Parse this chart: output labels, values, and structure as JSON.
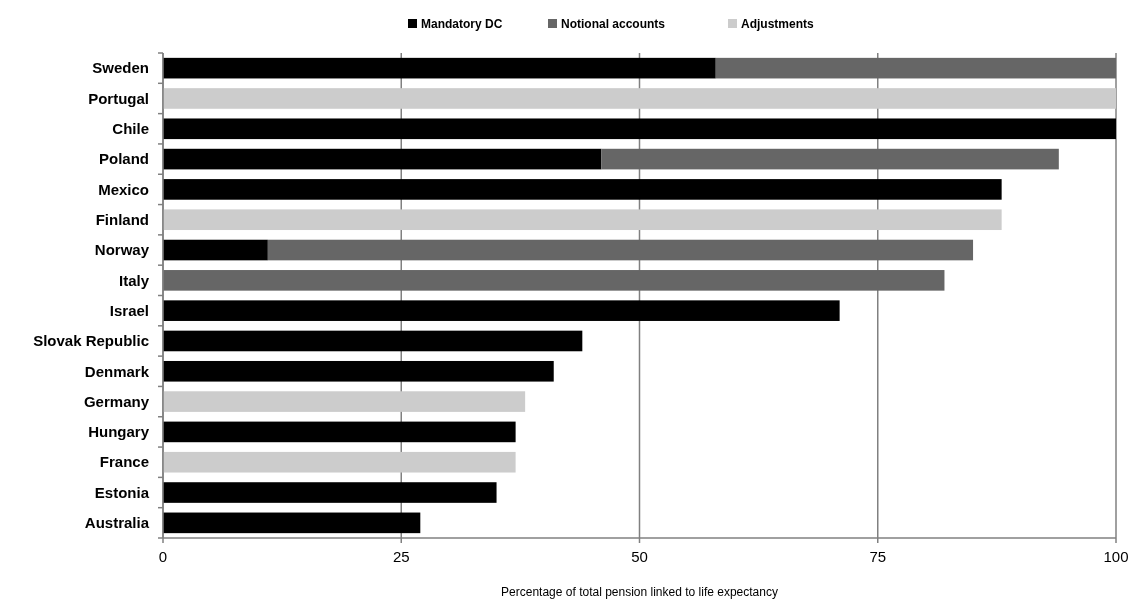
{
  "chart_data": {
    "type": "bar",
    "orientation": "horizontal",
    "stacked": true,
    "xlabel": "Percentage of total pension linked to life expectancy",
    "categories": [
      "Sweden",
      "Portugal",
      "Chile",
      "Poland",
      "Mexico",
      "Finland",
      "Norway",
      "Italy",
      "Israel",
      "Slovak Republic",
      "Denmark",
      "Germany",
      "Hungary",
      "France",
      "Estonia",
      "Australia"
    ],
    "series": [
      {
        "name": "Mandatory DC",
        "color": "#000000",
        "values": [
          58,
          null,
          100,
          46,
          88,
          null,
          11,
          null,
          71,
          44,
          41,
          null,
          37,
          null,
          35,
          27
        ]
      },
      {
        "name": "Notional accounts",
        "color": "#666666",
        "values": [
          42,
          null,
          null,
          48,
          null,
          null,
          74,
          82,
          null,
          null,
          null,
          null,
          null,
          null,
          null,
          null
        ]
      },
      {
        "name": "Adjustments",
        "color": "#cccccc",
        "values": [
          null,
          100,
          null,
          null,
          null,
          88,
          null,
          null,
          null,
          null,
          null,
          38,
          null,
          37,
          null,
          null
        ]
      }
    ],
    "xlim": [
      0,
      100
    ],
    "xticks": [
      0,
      25,
      50,
      75,
      100
    ],
    "grid": "x",
    "legend": "top"
  }
}
